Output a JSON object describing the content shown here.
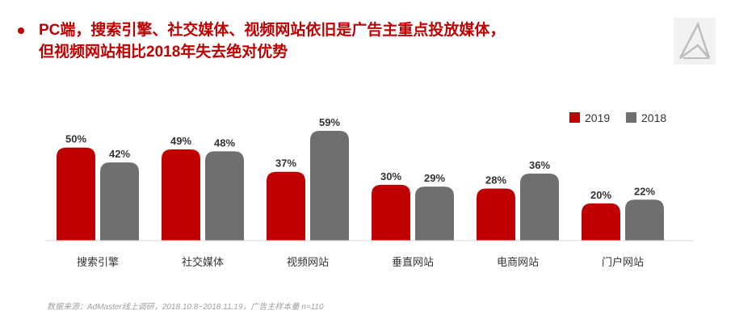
{
  "header": {
    "title_line1": "PC端，搜索引擎、社交媒体、视频网站依旧是广告主重点投放媒体，",
    "title_line2": "但视频网站相比2018年失去绝对优势"
  },
  "source_note": "数据来源：AdMaster线上调研，2018.10.8~2018.11.19，广告主样本量 n=110",
  "colors": {
    "accent": "#c00000",
    "series_2019": "#c00000",
    "series_2018": "#6f6f6f",
    "text": "#333333"
  },
  "chart_data": {
    "type": "bar",
    "categories": [
      "搜索引擎",
      "社交媒体",
      "视频网站",
      "垂直网站",
      "电商网站",
      "门户网站"
    ],
    "series": [
      {
        "name": "2019",
        "values": [
          50,
          49,
          37,
          30,
          28,
          20
        ]
      },
      {
        "name": "2018",
        "values": [
          42,
          48,
          59,
          29,
          36,
          22
        ]
      }
    ],
    "value_suffix": "%",
    "ylim": [
      0,
      59
    ],
    "grid": false,
    "legend": "top-right"
  }
}
